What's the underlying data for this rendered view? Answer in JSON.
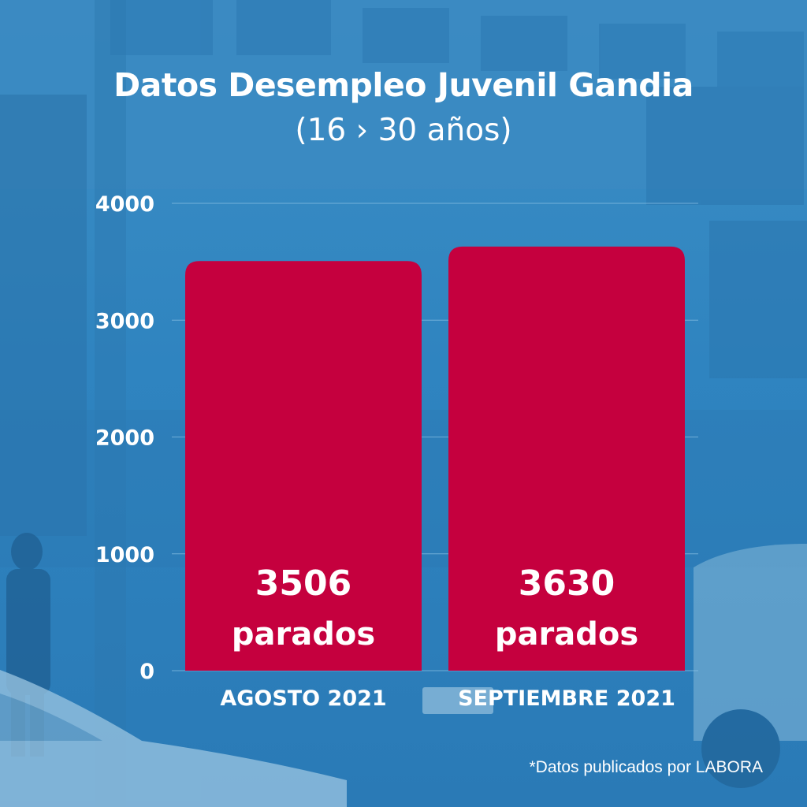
{
  "colors": {
    "background": "#2f84c0",
    "bar": "#c5003e",
    "text": "#ffffff",
    "grid": "#8fc3e6"
  },
  "chart_data": {
    "type": "bar",
    "title": "Datos Desempleo Juvenil Gandia",
    "subtitle": "(16 › 30 años)",
    "categories": [
      "AGOSTO 2021",
      "SEPTIEMBRE 2021"
    ],
    "values": [
      3506,
      3630
    ],
    "value_labels": [
      "3506",
      "3630"
    ],
    "value_unit": "parados",
    "ylim": [
      0,
      4000
    ],
    "yticks": [
      0,
      1000,
      2000,
      3000,
      4000
    ],
    "grid": true,
    "xlabel": "",
    "ylabel": ""
  },
  "footnote": "*Datos publicados por LABORA"
}
